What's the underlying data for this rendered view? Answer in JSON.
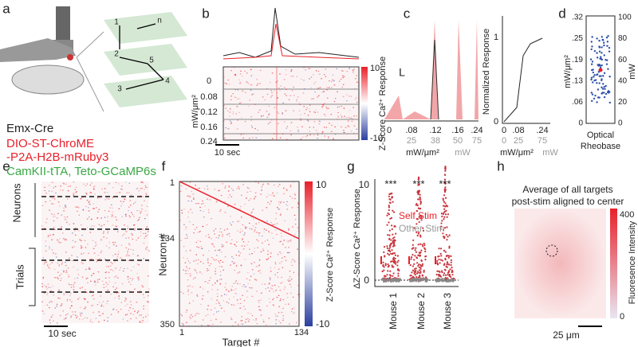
{
  "panels": {
    "a": {
      "letter": "a",
      "cells": [
        "1",
        "2",
        "3",
        "4",
        "5",
        "n"
      ],
      "mouse_line": "Emx-Cre",
      "construct_1": "DIO-ST-ChroME",
      "construct_2": "-P2A-H2B-mRuby3",
      "construct_3": "CamKII-tTA, Teto-GCaMP6s"
    },
    "b": {
      "letter": "b",
      "row_labels": [
        "0",
        "0.08",
        "0.12",
        "0.16",
        "0.24"
      ],
      "y_label": "mW/μm²",
      "scale_bar": "10 sec",
      "colorbar_ticks": [
        "10",
        "-10"
      ],
      "colorbar_label": "Z-Score Ca²⁺ Response"
    },
    "c": {
      "letter": "c",
      "trace_marker": "L",
      "x_ticks": [
        "0",
        ".08",
        ".12",
        ".16",
        ".24"
      ],
      "x_ticks_mw": [
        "25",
        "38",
        "50",
        "75"
      ],
      "x_label": "mW/μm²",
      "x_label_mw": "mW",
      "curve_y_ticks": [
        "0",
        "1"
      ],
      "curve_y_label": "Normalized Response",
      "curve_x_ticks": [
        "0",
        ".08",
        ".24"
      ],
      "curve_x_ticks_mw": [
        "0",
        "25",
        "75"
      ],
      "curve_x_label": "mW/μm²",
      "curve_x_label_mw": "mW"
    },
    "d": {
      "letter": "d",
      "left_ticks": [
        ".32",
        ".25",
        ".19",
        ".13",
        ".06",
        "0"
      ],
      "right_ticks": [
        "100",
        "80",
        "60",
        "40",
        "20",
        "0"
      ],
      "left_label": "mW/μm²",
      "right_label": "mW",
      "x_label_1": "Optical",
      "x_label_2": "Rheobase"
    },
    "e": {
      "letter": "e",
      "label_neurons": "Neurons",
      "label_trials": "Trials",
      "scale_bar": "10 sec"
    },
    "f": {
      "letter": "f",
      "y_ticks": [
        "1",
        "134",
        "350"
      ],
      "y_label": "Neuron #",
      "x_ticks": [
        "1",
        "134"
      ],
      "x_label": "Target #",
      "colorbar_ticks": [
        "10",
        "-10"
      ],
      "colorbar_label": "Z-Score Ca²⁺ Response"
    },
    "g": {
      "letter": "g",
      "y_ticks": [
        "10",
        "0"
      ],
      "y_label": "ΔZ-Score Ca²⁺ Response",
      "significance": [
        "***",
        "***",
        "***"
      ],
      "legend_self": "Self Stim",
      "legend_other": "Other Stim",
      "x_ticks": [
        "Mouse 1",
        "Mouse 2",
        "Mouse 3"
      ]
    },
    "h": {
      "letter": "h",
      "title_1": "Average of all targets",
      "title_2": "post-stim aligned to center",
      "colorbar_ticks": [
        "400",
        "0"
      ],
      "colorbar_label": "Fluoresence Intensity",
      "scale_bar": "25 μm"
    }
  }
}
